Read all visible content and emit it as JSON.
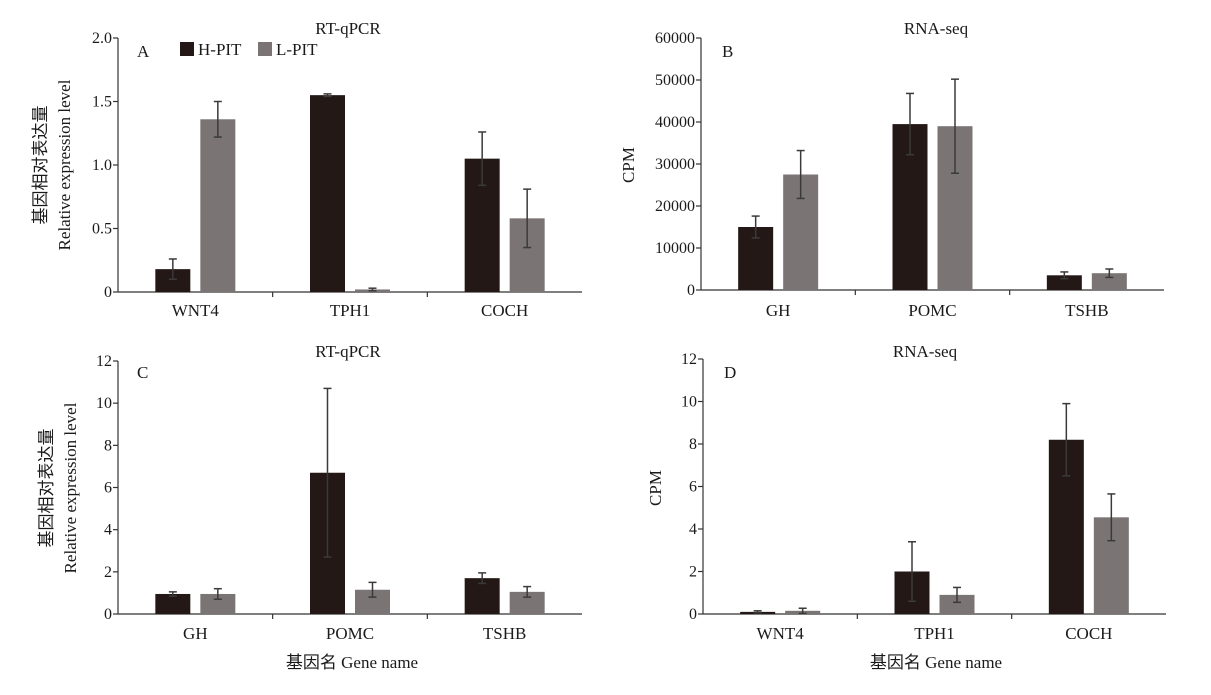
{
  "legend": [
    {
      "name": "H-PIT",
      "color": "#231815"
    },
    {
      "name": "L-PIT",
      "color": "#7a7574"
    }
  ],
  "x_axis_label": "基因名 Gene name",
  "chart_data": [
    {
      "id": "A",
      "type": "bar",
      "panel_label": "A",
      "title": "RT-qPCR",
      "ylabel_cn": "基因相对表达量",
      "ylabel_en": "Relative expression level",
      "ylim": [
        0,
        2.0
      ],
      "yticks": [
        "0",
        "0.5",
        "1.0",
        "1.5",
        "2.0"
      ],
      "categories": [
        "WNT4",
        "TPH1",
        "COCH"
      ],
      "series": [
        {
          "name": "H-PIT",
          "values": [
            0.18,
            1.55,
            1.05
          ],
          "errors": [
            0.08,
            0.01,
            0.21
          ]
        },
        {
          "name": "L-PIT",
          "values": [
            1.36,
            0.02,
            0.58
          ],
          "errors": [
            0.14,
            0.01,
            0.23
          ]
        }
      ]
    },
    {
      "id": "B",
      "type": "bar",
      "panel_label": "B",
      "title": "RNA-seq",
      "ylabel_cn": "",
      "ylabel_en": "CPM",
      "ylim": [
        0,
        60000
      ],
      "yticks": [
        "0",
        "10000",
        "20000",
        "30000",
        "40000",
        "50000",
        "60000"
      ],
      "categories": [
        "GH",
        "POMC",
        "TSHB"
      ],
      "series": [
        {
          "name": "H-PIT",
          "values": [
            15000,
            39500,
            3500
          ],
          "errors": [
            2600,
            7300,
            800
          ]
        },
        {
          "name": "L-PIT",
          "values": [
            27500,
            39000,
            4000
          ],
          "errors": [
            5700,
            11200,
            1000
          ]
        }
      ]
    },
    {
      "id": "C",
      "type": "bar",
      "panel_label": "C",
      "title": "RT-qPCR",
      "ylabel_cn": "基因相对表达量",
      "ylabel_en": "Relative expression level",
      "ylim": [
        0,
        12
      ],
      "yticks": [
        "0",
        "2",
        "4",
        "6",
        "8",
        "10",
        "12"
      ],
      "categories": [
        "GH",
        "POMC",
        "TSHB"
      ],
      "series": [
        {
          "name": "H-PIT",
          "values": [
            0.95,
            6.7,
            1.7
          ],
          "errors": [
            0.1,
            4.0,
            0.25
          ]
        },
        {
          "name": "L-PIT",
          "values": [
            0.95,
            1.15,
            1.05
          ],
          "errors": [
            0.25,
            0.35,
            0.25
          ]
        }
      ]
    },
    {
      "id": "D",
      "type": "bar",
      "panel_label": "D",
      "title": "RNA-seq",
      "ylabel_cn": "",
      "ylabel_en": "CPM",
      "ylim": [
        0,
        12
      ],
      "yticks": [
        "0",
        "2",
        "4",
        "6",
        "8",
        "10",
        "12"
      ],
      "categories": [
        "WNT4",
        "TPH1",
        "COCH"
      ],
      "series": [
        {
          "name": "H-PIT",
          "values": [
            0.1,
            2.0,
            8.2
          ],
          "errors": [
            0.05,
            1.4,
            1.7
          ]
        },
        {
          "name": "L-PIT",
          "values": [
            0.15,
            0.9,
            4.55
          ],
          "errors": [
            0.12,
            0.35,
            1.1
          ]
        }
      ]
    }
  ]
}
